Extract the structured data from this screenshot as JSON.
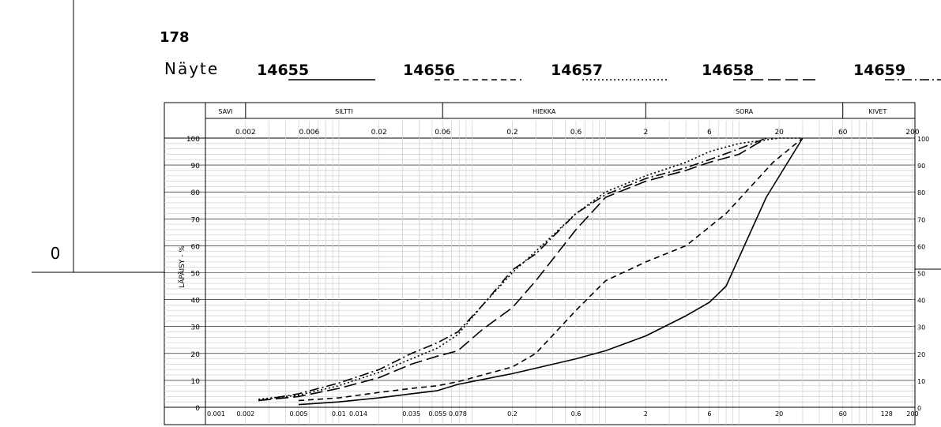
{
  "sheet": {
    "number": "178",
    "sample_label": "Näyte",
    "left_axis_zero": "0"
  },
  "samples": [
    {
      "id": "14655",
      "style": "solid"
    },
    {
      "id": "14656",
      "style": "dashed"
    },
    {
      "id": "14657",
      "style": "dotted"
    },
    {
      "id": "14658",
      "style": "long-dash"
    },
    {
      "id": "14659",
      "style": "dash-dot"
    }
  ],
  "chart_data": {
    "type": "line",
    "x_scale": "log",
    "xlim": [
      0.001,
      200
    ],
    "ylim": [
      0,
      100
    ],
    "ylabel": "LÄPÄISY - %",
    "y_ticks": [
      0,
      10,
      20,
      30,
      40,
      50,
      60,
      70,
      80,
      90,
      100
    ],
    "top_ticks": [
      "0.002",
      "0.006",
      "0.02",
      "0.06",
      "0.2",
      "0.6",
      "2",
      "6",
      "20",
      "60",
      "200"
    ],
    "top_tick_values": [
      0.002,
      0.006,
      0.02,
      0.06,
      0.2,
      0.6,
      2,
      6,
      20,
      60,
      200
    ],
    "bottom_ticks": [
      "0.001",
      "0.002",
      "0.005",
      "0.01",
      "0.014",
      "0.035",
      "0.055",
      "0.078",
      "0.2",
      "0.6",
      "2",
      "6",
      "20",
      "60",
      "128",
      "200"
    ],
    "bottom_tick_values": [
      0.001,
      0.002,
      0.005,
      0.01,
      0.014,
      0.035,
      0.055,
      0.078,
      0.2,
      0.6,
      2,
      6,
      20,
      60,
      128,
      200
    ],
    "fractions": [
      {
        "name": "SAVI",
        "from": 0.001,
        "to": 0.002
      },
      {
        "name": "SILTTI",
        "from": 0.002,
        "to": 0.06
      },
      {
        "name": "HIEKKA",
        "from": 0.06,
        "to": 2
      },
      {
        "name": "SORA",
        "from": 2,
        "to": 60
      },
      {
        "name": "KIVET",
        "from": 60,
        "to": 200
      }
    ],
    "grid": true,
    "series": [
      {
        "name": "14655",
        "style": "solid",
        "points": [
          [
            0.005,
            1
          ],
          [
            0.01,
            2
          ],
          [
            0.02,
            3.5
          ],
          [
            0.035,
            5
          ],
          [
            0.055,
            6.2
          ],
          [
            0.078,
            8.5
          ],
          [
            0.2,
            12.5
          ],
          [
            0.6,
            18
          ],
          [
            1,
            21
          ],
          [
            2,
            26.5
          ],
          [
            4,
            34
          ],
          [
            6,
            39
          ],
          [
            8,
            45
          ],
          [
            16,
            78
          ],
          [
            30,
            100
          ]
        ]
      },
      {
        "name": "14656",
        "style": "dashed",
        "points": [
          [
            0.005,
            2.5
          ],
          [
            0.01,
            3.5
          ],
          [
            0.02,
            5.5
          ],
          [
            0.035,
            7
          ],
          [
            0.055,
            8
          ],
          [
            0.078,
            9.5
          ],
          [
            0.2,
            15
          ],
          [
            0.3,
            20
          ],
          [
            0.6,
            36
          ],
          [
            1,
            47
          ],
          [
            2,
            54
          ],
          [
            4,
            60
          ],
          [
            8,
            72
          ],
          [
            18,
            91
          ],
          [
            30,
            100
          ]
        ]
      },
      {
        "name": "14657",
        "style": "dotted",
        "points": [
          [
            0.0025,
            3
          ],
          [
            0.005,
            4.5
          ],
          [
            0.01,
            8
          ],
          [
            0.02,
            13
          ],
          [
            0.035,
            18
          ],
          [
            0.055,
            22
          ],
          [
            0.078,
            27
          ],
          [
            0.12,
            38
          ],
          [
            0.2,
            50
          ],
          [
            0.3,
            58
          ],
          [
            0.6,
            72
          ],
          [
            1,
            80
          ],
          [
            2,
            86
          ],
          [
            4,
            91
          ],
          [
            6,
            95
          ],
          [
            10,
            98
          ],
          [
            20,
            100
          ],
          [
            30,
            100
          ]
        ]
      },
      {
        "name": "14658",
        "style": "long-dash",
        "points": [
          [
            0.0025,
            2.5
          ],
          [
            0.005,
            4
          ],
          [
            0.01,
            7
          ],
          [
            0.02,
            11
          ],
          [
            0.035,
            16
          ],
          [
            0.055,
            19
          ],
          [
            0.078,
            21
          ],
          [
            0.12,
            29
          ],
          [
            0.2,
            37
          ],
          [
            0.3,
            47
          ],
          [
            0.6,
            66
          ],
          [
            1,
            78
          ],
          [
            2,
            84
          ],
          [
            4,
            88
          ],
          [
            6,
            91
          ],
          [
            10,
            94
          ],
          [
            16,
            100
          ]
        ]
      },
      {
        "name": "14659",
        "style": "dash-dot",
        "points": [
          [
            0.0025,
            2.5
          ],
          [
            0.005,
            5
          ],
          [
            0.01,
            9
          ],
          [
            0.02,
            14
          ],
          [
            0.035,
            20
          ],
          [
            0.055,
            24
          ],
          [
            0.078,
            28
          ],
          [
            0.12,
            38
          ],
          [
            0.2,
            51
          ],
          [
            0.3,
            57
          ],
          [
            0.6,
            72
          ],
          [
            1,
            79
          ],
          [
            2,
            85
          ],
          [
            4,
            89
          ],
          [
            6,
            92
          ],
          [
            10,
            96
          ],
          [
            16,
            100
          ]
        ]
      }
    ]
  }
}
